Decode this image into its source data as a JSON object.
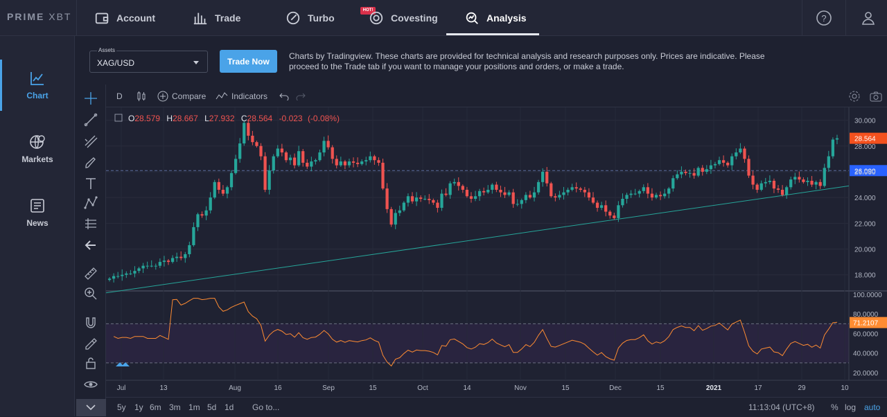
{
  "brand": {
    "prefix": "PRIME",
    "suffix": "XBT"
  },
  "nav": [
    {
      "label": "Account",
      "icon": "wallet-icon"
    },
    {
      "label": "Trade",
      "icon": "bar-chart-icon"
    },
    {
      "label": "Turbo",
      "icon": "turbo-icon"
    },
    {
      "label": "Covesting",
      "icon": "covesting-icon",
      "badge": "HOT!"
    },
    {
      "label": "Analysis",
      "icon": "analysis-icon",
      "active": true
    }
  ],
  "sidebar": [
    {
      "label": "Chart",
      "icon": "chart-icon",
      "active": true
    },
    {
      "label": "Markets",
      "icon": "globe-icon"
    },
    {
      "label": "News",
      "icon": "news-icon"
    }
  ],
  "assets": {
    "label": "Assets",
    "value": "XAG/USD"
  },
  "trade_now_label": "Trade Now",
  "disclaimer": "Charts by Tradingview. These charts are provided for technical analysis and research purposes only. Prices are indicative. Please proceed to the Trade tab if you want to manage your positions and orders, or make a trade.",
  "toolbar": {
    "interval": "D",
    "compare": "Compare",
    "indicators": "Indicators"
  },
  "bottom": {
    "ranges": [
      "5y",
      "1y",
      "6m",
      "3m",
      "1m",
      "5d",
      "1d"
    ],
    "goto": "Go to...",
    "time": "11:13:04 (UTC+8)",
    "percent": "%",
    "log": "log",
    "auto": "auto"
  },
  "colors": {
    "up": "#26a69a",
    "down": "#ef5350",
    "accent": "#4aa3e8",
    "rsi": "#ff8c32",
    "last_price": "#f4511e",
    "line_level": "#2962ff"
  },
  "chart_data": {
    "type": "candlestick",
    "symbol": "XAG/USD",
    "ohlc_legend": {
      "O": "28.579",
      "H": "28.667",
      "L": "27.932",
      "C": "28.564",
      "change": "-0.023",
      "change_pct": "(-0.08%)"
    },
    "price_axis": {
      "ticks": [
        "30.000",
        "28.000",
        "26.000",
        "24.000",
        "22.000",
        "20.000",
        "18.000"
      ],
      "ylim": [
        16.8,
        31.0
      ]
    },
    "last_price_label": "28.564",
    "horizontal_line_label": "26.090",
    "horizontal_line_value": 26.09,
    "trend_line": {
      "from": [
        0,
        16.6
      ],
      "to": [
        1,
        24.9
      ]
    },
    "x_ticks": [
      "Jul",
      "13",
      "Aug",
      "16",
      "Sep",
      "15",
      "Oct",
      "14",
      "Nov",
      "15",
      "Dec",
      "15",
      "2021",
      "17",
      "29",
      "10"
    ],
    "closes": [
      17.7,
      17.9,
      17.9,
      18.0,
      18.1,
      18.1,
      18.3,
      18.5,
      18.7,
      18.7,
      18.7,
      18.7,
      19.0,
      19.1,
      19.0,
      19.3,
      19.4,
      19.3,
      19.6,
      20.3,
      21.7,
      22.7,
      22.6,
      23.0,
      24.0,
      25.2,
      24.6,
      24.3,
      24.8,
      25.9,
      27.0,
      28.2,
      29.8,
      28.8,
      28.3,
      28.0,
      27.2,
      24.6,
      26.1,
      27.2,
      27.8,
      27.5,
      26.9,
      27.1,
      26.5,
      27.6,
      26.7,
      26.4,
      26.8,
      26.9,
      27.5,
      28.4,
      27.9,
      27.0,
      26.5,
      26.8,
      26.5,
      26.8,
      26.7,
      26.6,
      26.8,
      26.9,
      27.2,
      26.9,
      26.7,
      24.7,
      23.1,
      21.9,
      22.8,
      23.0,
      23.6,
      24.1,
      23.7,
      24.0,
      23.9,
      23.9,
      23.8,
      23.6,
      23.2,
      24.3,
      24.2,
      25.1,
      25.2,
      24.9,
      24.6,
      24.1,
      23.9,
      24.1,
      24.5,
      24.4,
      24.6,
      25.0,
      24.6,
      24.4,
      24.2,
      24.4,
      23.5,
      23.5,
      23.8,
      24.2,
      24.0,
      24.4,
      25.2,
      26.0,
      25.1,
      24.1,
      24.0,
      24.2,
      24.4,
      24.6,
      24.8,
      24.7,
      24.6,
      24.4,
      24.0,
      23.6,
      23.2,
      23.4,
      22.9,
      22.6,
      22.4,
      23.4,
      23.9,
      24.2,
      24.3,
      24.3,
      24.5,
      24.8,
      24.3,
      24.0,
      24.2,
      24.1,
      24.3,
      24.7,
      25.5,
      25.8,
      26.0,
      25.9,
      25.9,
      25.7,
      26.3,
      26.0,
      26.2,
      26.5,
      26.6,
      26.9,
      26.7,
      26.5,
      27.2,
      27.5,
      27.8,
      27.0,
      25.7,
      25.0,
      24.6,
      25.1,
      25.2,
      25.3,
      24.7,
      24.6,
      24.2,
      24.8,
      25.4,
      25.6,
      25.4,
      25.2,
      25.3,
      25.0,
      25.2,
      24.9,
      26.3,
      27.2,
      28.5,
      28.6
    ],
    "rsi": {
      "axis_ticks": [
        "100.0000",
        "80.0000",
        "60.0000",
        "40.0000",
        "20.0000"
      ],
      "last_label": "71.2107",
      "levels": [
        70,
        30
      ]
    }
  }
}
